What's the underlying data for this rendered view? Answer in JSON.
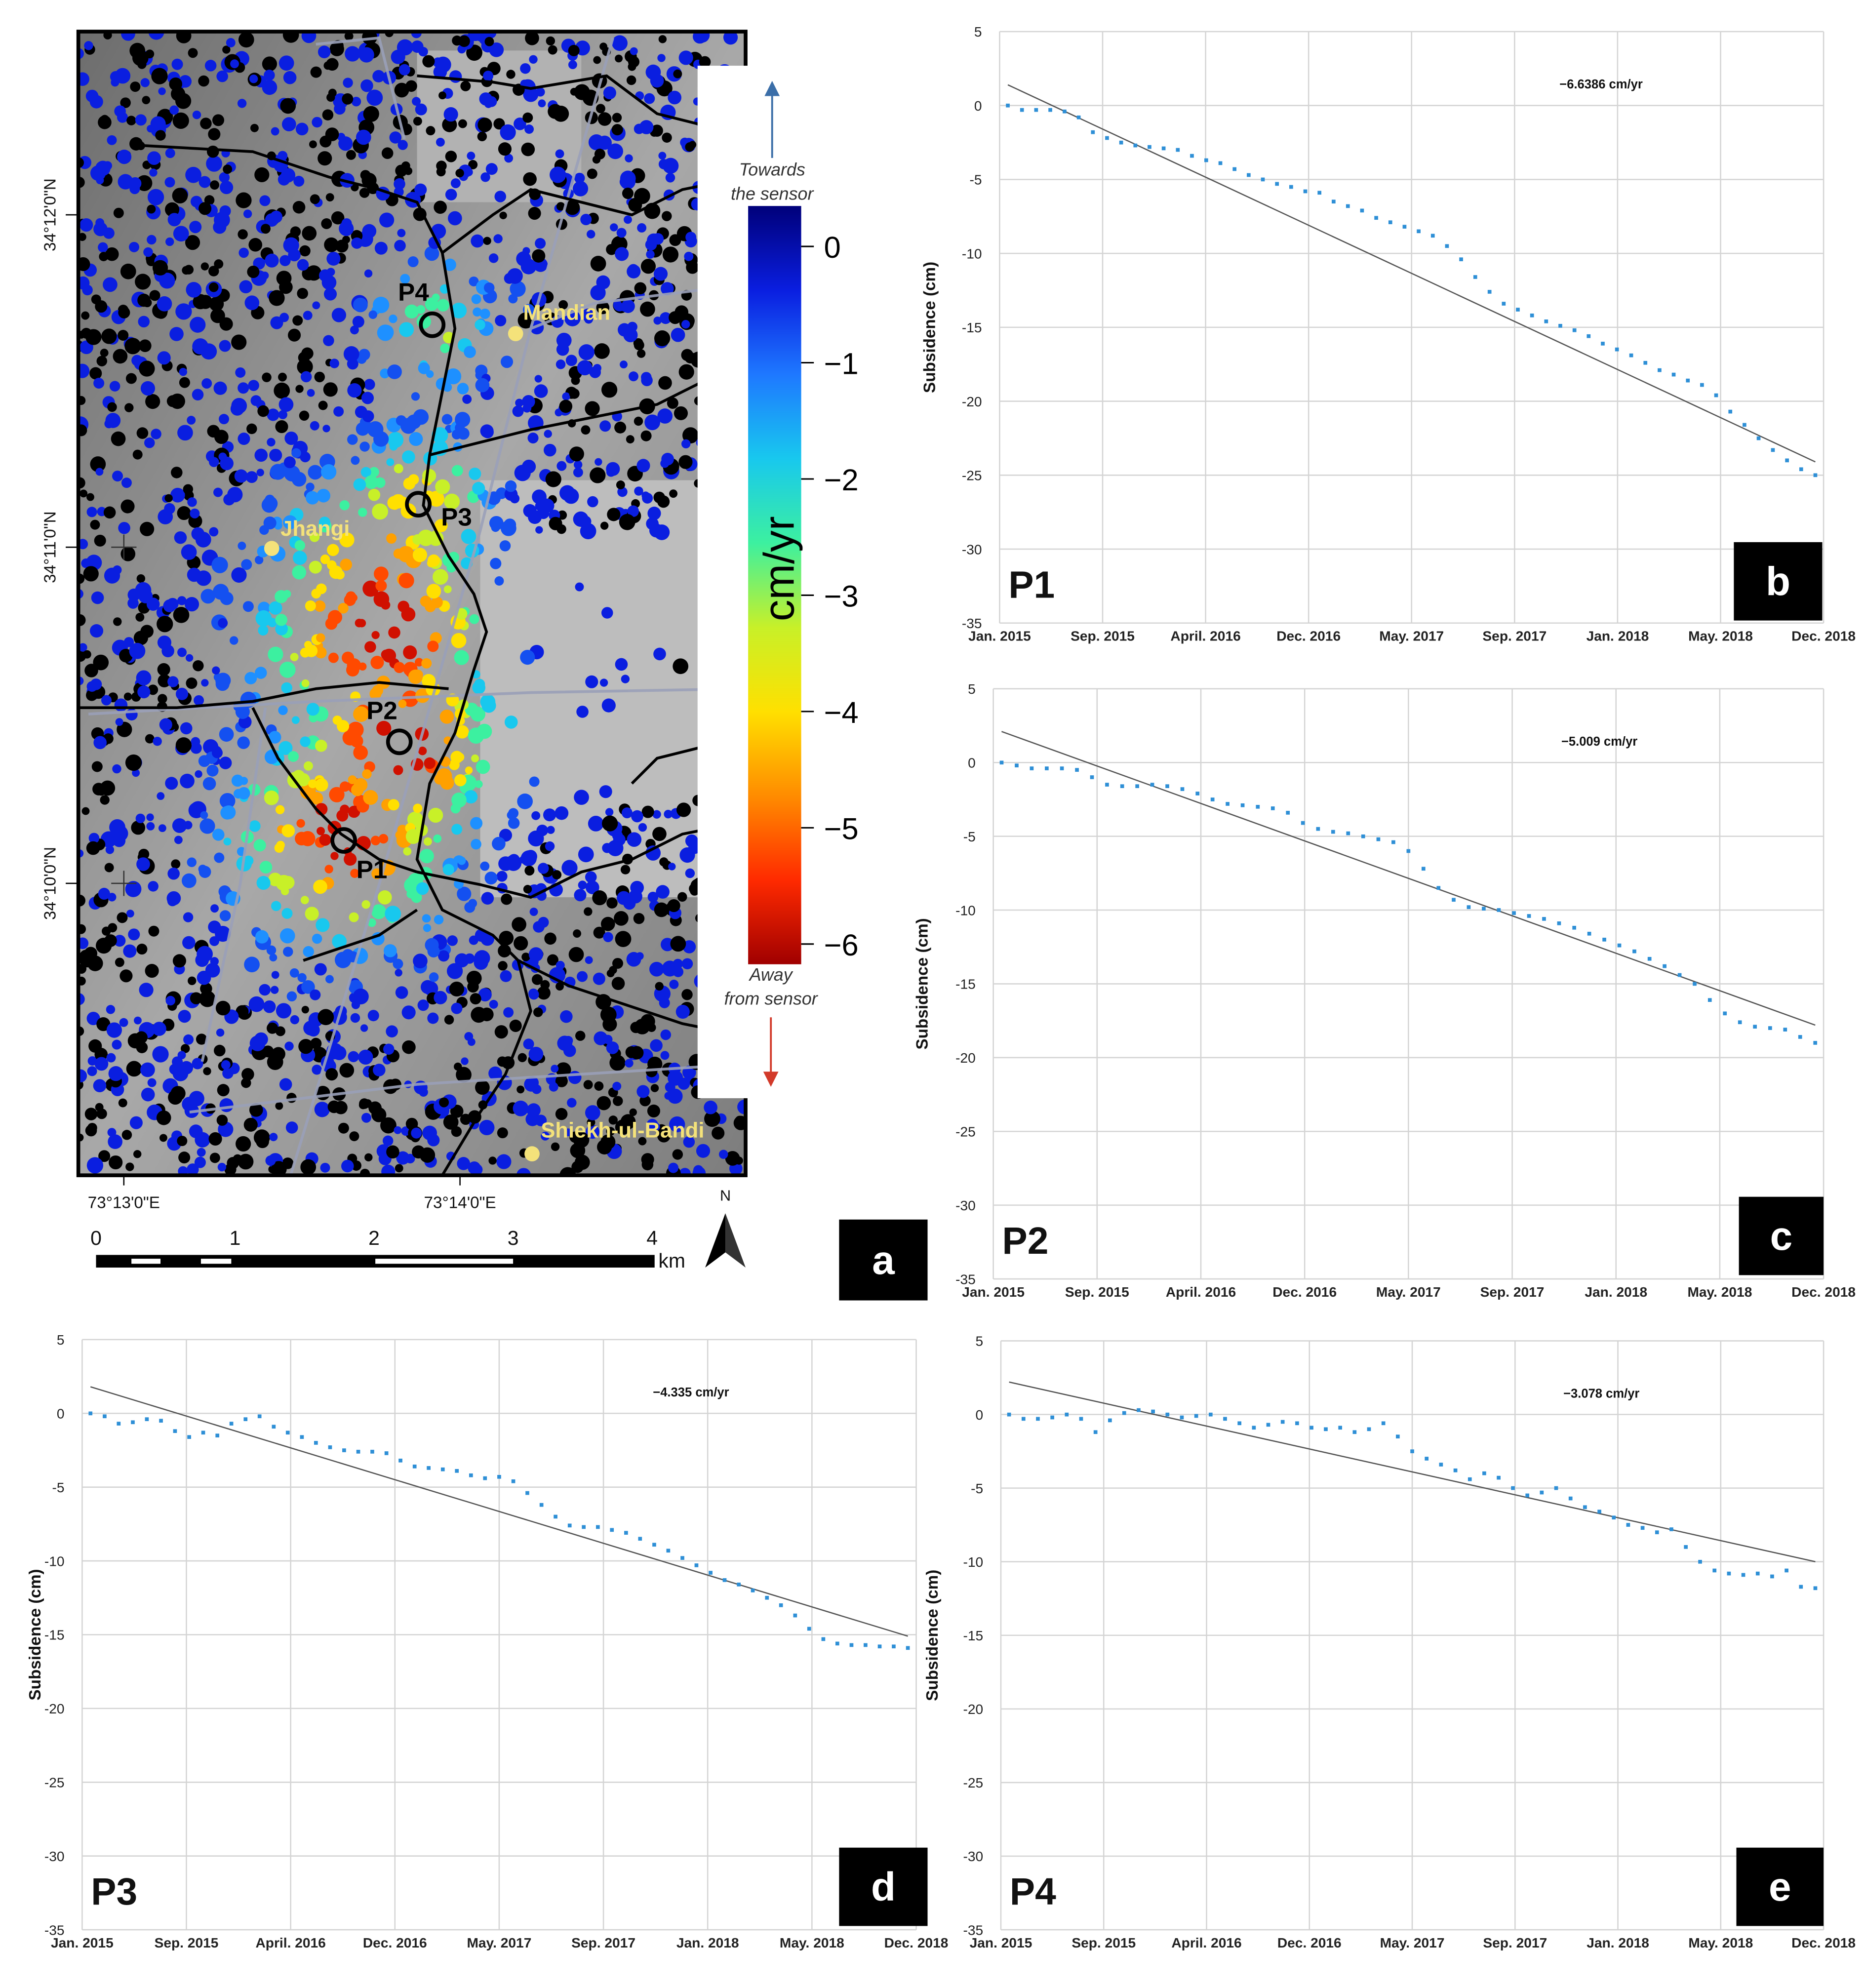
{
  "figure": {
    "panel_letters": [
      "a",
      "b",
      "c",
      "d",
      "e"
    ]
  },
  "map": {
    "colorbar": {
      "unit": "cm/yr",
      "ticks": [
        "0",
        "−1",
        "−2",
        "−3",
        "−4",
        "−5",
        "−6"
      ],
      "top_label_line1": "Towards",
      "top_label_line2": "the sensor",
      "bottom_label_line1": "Away",
      "bottom_label_line2": "from sensor",
      "colors": [
        "#00007a",
        "#0a1ee0",
        "#1e78ff",
        "#18c8ee",
        "#3cf0a0",
        "#c8f028",
        "#ffe000",
        "#ff8c00",
        "#ff2a00",
        "#a00000"
      ]
    },
    "points": [
      "P1",
      "P2",
      "P3",
      "P4"
    ],
    "places": [
      "Mandian",
      "Jhangi",
      "Shiekh-ul-Bandi"
    ],
    "lat_labels": [
      "34°12'0\"N",
      "34°11'0\"N",
      "34°10'0\"N"
    ],
    "lon_labels": [
      "73°13'0\"E",
      "73°14'0\"E"
    ],
    "scale_ticks": [
      "0",
      "1",
      "2",
      "3",
      "4"
    ],
    "scale_unit": "km",
    "north": "N"
  },
  "chart_data": [
    {
      "type": "scatter",
      "panel": "b",
      "point": "P1",
      "rate_label": "−6.6386 cm/yr",
      "ylabel": "Subsidence (cm)",
      "ylim": [
        -35,
        5
      ],
      "yticks": [
        "5",
        "0",
        "-5",
        "-10",
        "-15",
        "-20",
        "-25",
        "-30",
        "-35"
      ],
      "xticks": [
        "Jan. 2015",
        "Sep. 2015",
        "April. 2016",
        "Dec. 2016",
        "May. 2017",
        "Sep. 2017",
        "Jan. 2018",
        "May. 2018",
        "Dec. 2018"
      ],
      "trend": [
        1.4,
        -24.1
      ],
      "series": [
        {
          "values": [
            0,
            -0.3,
            -0.3,
            -0.3,
            -0.4,
            -0.8,
            -1.8,
            -2.2,
            -2.5,
            -2.7,
            -2.8,
            -2.9,
            -3.0,
            -3.4,
            -3.7,
            -3.9,
            -4.3,
            -4.7,
            -5.0,
            -5.3,
            -5.5,
            -5.8,
            -5.9,
            -6.5,
            -6.8,
            -7.1,
            -7.6,
            -7.9,
            -8.2,
            -8.5,
            -8.8,
            -9.5,
            -10.4,
            -11.6,
            -12.6,
            -13.4,
            -13.8,
            -14.2,
            -14.6,
            -14.9,
            -15.2,
            -15.6,
            -16.1,
            -16.5,
            -16.9,
            -17.4,
            -17.9,
            -18.2,
            -18.6,
            -18.9,
            -19.6,
            -20.7,
            -21.6,
            -22.5,
            -23.3,
            -24.0,
            -24.6,
            -25.0
          ]
        }
      ]
    },
    {
      "type": "scatter",
      "panel": "c",
      "point": "P2",
      "rate_label": "−5.009 cm/yr",
      "ylabel": "Subsidence (cm)",
      "ylim": [
        -35,
        5
      ],
      "yticks": [
        "5",
        "0",
        "-5",
        "-10",
        "-15",
        "-20",
        "-25",
        "-30",
        "-35"
      ],
      "xticks": [
        "Jan. 2015",
        "Sep. 2015",
        "April. 2016",
        "Dec. 2016",
        "May. 2017",
        "Sep. 2017",
        "Jan. 2018",
        "May. 2018",
        "Dec. 2018"
      ],
      "trend": [
        2.1,
        -17.8
      ],
      "series": [
        {
          "values": [
            0,
            -0.2,
            -0.4,
            -0.4,
            -0.4,
            -0.5,
            -1.0,
            -1.5,
            -1.6,
            -1.6,
            -1.5,
            -1.6,
            -1.8,
            -2.1,
            -2.5,
            -2.8,
            -2.9,
            -3.0,
            -3.1,
            -3.4,
            -4.1,
            -4.5,
            -4.7,
            -4.8,
            -5.0,
            -5.2,
            -5.4,
            -6.0,
            -7.2,
            -8.5,
            -9.3,
            -9.8,
            -9.9,
            -10.0,
            -10.2,
            -10.4,
            -10.6,
            -10.9,
            -11.2,
            -11.6,
            -12.0,
            -12.4,
            -12.8,
            -13.3,
            -13.8,
            -14.4,
            -15.0,
            -16.1,
            -17.0,
            -17.6,
            -17.9,
            -18.0,
            -18.1,
            -18.6,
            -19.0
          ]
        }
      ]
    },
    {
      "type": "scatter",
      "panel": "d",
      "point": "P3",
      "rate_label": "−4.335 cm/yr",
      "ylabel": "Subsidence (cm)",
      "ylim": [
        -35,
        5
      ],
      "yticks": [
        "5",
        "0",
        "-5",
        "-10",
        "-15",
        "-20",
        "-25",
        "-30",
        "-35"
      ],
      "xticks": [
        "Jan. 2015",
        "Sep. 2015",
        "April. 2016",
        "Dec. 2016",
        "May. 2017",
        "Sep. 2017",
        "Jan. 2018",
        "May. 2018",
        "Dec. 2018"
      ],
      "trend": [
        1.8,
        -15.1
      ],
      "series": [
        {
          "values": [
            0,
            -0.2,
            -0.7,
            -0.6,
            -0.4,
            -0.5,
            -1.2,
            -1.6,
            -1.3,
            -1.5,
            -0.7,
            -0.4,
            -0.2,
            -0.9,
            -1.3,
            -1.6,
            -2.0,
            -2.3,
            -2.5,
            -2.6,
            -2.6,
            -2.7,
            -3.2,
            -3.6,
            -3.7,
            -3.8,
            -3.9,
            -4.2,
            -4.4,
            -4.3,
            -4.6,
            -5.4,
            -6.2,
            -7.0,
            -7.6,
            -7.7,
            -7.7,
            -7.9,
            -8.1,
            -8.5,
            -8.9,
            -9.3,
            -9.8,
            -10.3,
            -10.8,
            -11.3,
            -11.6,
            -12.0,
            -12.5,
            -13.0,
            -13.7,
            -14.6,
            -15.3,
            -15.6,
            -15.7,
            -15.7,
            -15.8,
            -15.8,
            -15.9
          ]
        }
      ]
    },
    {
      "type": "scatter",
      "panel": "e",
      "point": "P4",
      "rate_label": "−3.078 cm/yr",
      "ylabel": "Subsidence (cm)",
      "ylim": [
        -35,
        5
      ],
      "yticks": [
        "5",
        "0",
        "-5",
        "-10",
        "-15",
        "-20",
        "-25",
        "-30",
        "-35"
      ],
      "xticks": [
        "Jan. 2015",
        "Sep. 2015",
        "April. 2016",
        "Dec. 2016",
        "May. 2017",
        "Sep. 2017",
        "Jan. 2018",
        "May. 2018",
        "Dec. 2018"
      ],
      "trend": [
        2.2,
        -10.0
      ],
      "series": [
        {
          "values": [
            0,
            -0.3,
            -0.3,
            -0.2,
            0,
            -0.3,
            -1.2,
            -0.4,
            0.1,
            0.3,
            0.2,
            0,
            -0.2,
            -0.1,
            0,
            -0.3,
            -0.6,
            -0.9,
            -0.7,
            -0.5,
            -0.6,
            -0.9,
            -1.0,
            -0.9,
            -1.2,
            -1.0,
            -0.6,
            -1.5,
            -2.5,
            -3.0,
            -3.4,
            -3.8,
            -4.4,
            -4.0,
            -4.3,
            -5.0,
            -5.5,
            -5.3,
            -5.0,
            -5.7,
            -6.3,
            -6.6,
            -7.0,
            -7.5,
            -7.7,
            -8.0,
            -7.8,
            -9.0,
            -10.0,
            -10.6,
            -10.8,
            -10.9,
            -10.8,
            -11.0,
            -10.6,
            -11.7,
            -11.8
          ]
        }
      ]
    }
  ]
}
